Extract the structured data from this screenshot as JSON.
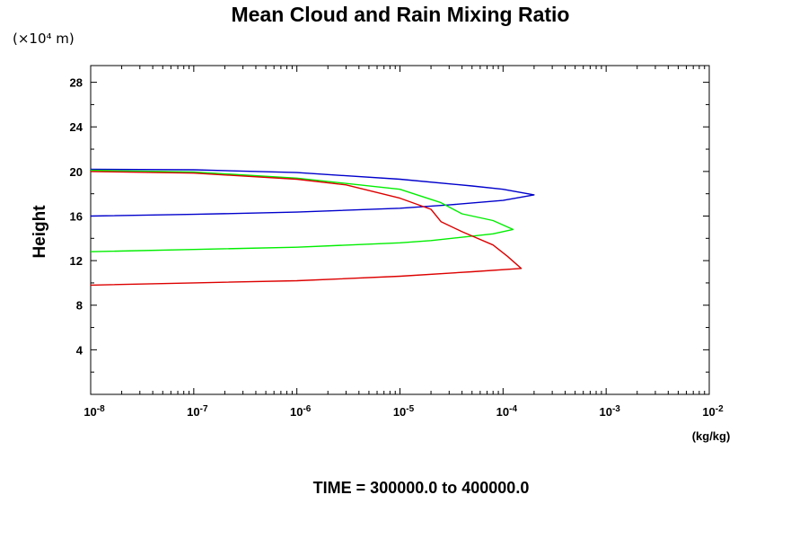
{
  "chart_data": {
    "type": "line",
    "title": "Mean Cloud and Rain Mixing Ratio",
    "ylabel": "Height",
    "y_unit_label": "(×10⁴ m)",
    "xlabel": "(kg/kg)",
    "x_scale": "log",
    "xlim": [
      1e-08,
      0.01
    ],
    "ylim": [
      0,
      29.5
    ],
    "x_tick_labels": [
      {
        "base": "10",
        "exp": "-8"
      },
      {
        "base": "10",
        "exp": "-7"
      },
      {
        "base": "10",
        "exp": "-6"
      },
      {
        "base": "10",
        "exp": "-5"
      },
      {
        "base": "10",
        "exp": "-4"
      },
      {
        "base": "10",
        "exp": "-3"
      },
      {
        "base": "10",
        "exp": "-2"
      }
    ],
    "y_tick_labels": [
      "4",
      "8",
      "12",
      "16",
      "20",
      "24",
      "28"
    ],
    "grid": false,
    "series": [
      {
        "color": "#0000cc",
        "points": [
          [
            1e-08,
            20.2
          ],
          [
            1e-07,
            20.15
          ],
          [
            1e-06,
            19.9
          ],
          [
            1e-05,
            19.3
          ],
          [
            5e-05,
            18.7
          ],
          [
            0.0001,
            18.4
          ],
          [
            0.0002,
            17.9
          ],
          [
            0.0001,
            17.4
          ],
          [
            3e-05,
            17.0
          ],
          [
            1e-05,
            16.7
          ],
          [
            1e-06,
            16.35
          ],
          [
            1e-07,
            16.15
          ],
          [
            1e-08,
            16.0
          ]
        ]
      },
      {
        "color": "#00ee00",
        "points": [
          [
            1e-08,
            20.1
          ],
          [
            1e-07,
            19.95
          ],
          [
            1e-06,
            19.4
          ],
          [
            1e-05,
            18.4
          ],
          [
            2.5e-05,
            17.2
          ],
          [
            4e-05,
            16.2
          ],
          [
            8e-05,
            15.6
          ],
          [
            0.000125,
            14.8
          ],
          [
            8e-05,
            14.4
          ],
          [
            2e-05,
            13.8
          ],
          [
            1e-05,
            13.6
          ],
          [
            1e-06,
            13.2
          ],
          [
            1e-07,
            13.0
          ],
          [
            1e-08,
            12.8
          ]
        ]
      },
      {
        "color": "#dd0000",
        "points": [
          [
            1e-08,
            20.0
          ],
          [
            1e-07,
            19.85
          ],
          [
            1e-06,
            19.3
          ],
          [
            3e-06,
            18.8
          ],
          [
            1e-05,
            17.6
          ],
          [
            2e-05,
            16.6
          ],
          [
            2.5e-05,
            15.5
          ],
          [
            4e-05,
            14.6
          ],
          [
            8e-05,
            13.4
          ],
          [
            0.00011,
            12.4
          ],
          [
            0.00015,
            11.3
          ],
          [
            5e-05,
            11.0
          ],
          [
            1e-05,
            10.6
          ],
          [
            1e-06,
            10.2
          ],
          [
            1e-07,
            10.0
          ],
          [
            1e-08,
            9.8
          ]
        ]
      }
    ],
    "footer": "TIME = 300000.0 to 400000.0"
  }
}
